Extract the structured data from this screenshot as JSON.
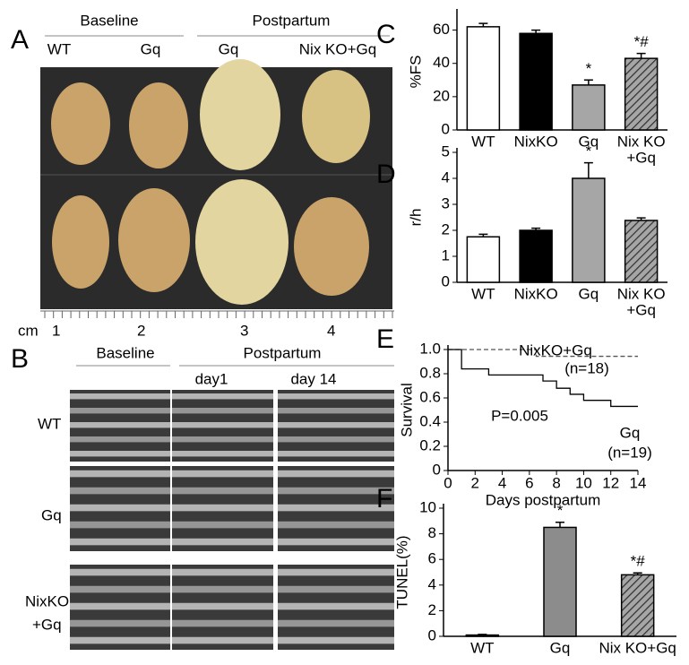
{
  "panels": {
    "A": {
      "letter": "A",
      "groups": [
        "Baseline",
        "Postpartum"
      ],
      "labels": [
        "WT",
        "Gq",
        "Gq",
        "Nix KO+Gq"
      ],
      "scale": {
        "unit": "cm",
        "marks": [
          "1",
          "2",
          "3",
          "4"
        ]
      }
    },
    "B": {
      "letter": "B",
      "groups": [
        "Baseline",
        "Postpartum"
      ],
      "days": [
        "day1",
        "day 14"
      ],
      "rows": [
        "WT",
        "Gq",
        [
          "NixKO",
          "+Gq"
        ]
      ]
    }
  },
  "chart_data": [
    {
      "type": "bar",
      "letter": "C",
      "ylabel": "%FS",
      "categories": [
        "WT",
        "NixKO",
        "Gq",
        [
          "Nix KO",
          "+Gq"
        ]
      ],
      "values": [
        62,
        58,
        27,
        43
      ],
      "errors": [
        2,
        2,
        3,
        3
      ],
      "colors": [
        "#ffffff",
        "#000000",
        "#a6a6a6",
        "#a6a6a6"
      ],
      "hatch": [
        false,
        false,
        false,
        true
      ],
      "annotations": [
        null,
        null,
        "*",
        "*#"
      ],
      "ylim": [
        0,
        70
      ],
      "yticks": [
        0,
        20,
        40,
        60
      ]
    },
    {
      "type": "bar",
      "letter": "D",
      "ylabel": "r/h",
      "categories": [
        "WT",
        "NixKO",
        "Gq",
        [
          "Nix KO",
          "+Gq"
        ]
      ],
      "values": [
        1.75,
        2.0,
        4.0,
        2.38
      ],
      "errors": [
        0.1,
        0.08,
        0.6,
        0.1
      ],
      "colors": [
        "#ffffff",
        "#000000",
        "#a6a6a6",
        "#a6a6a6"
      ],
      "hatch": [
        false,
        false,
        false,
        true
      ],
      "annotations": [
        null,
        null,
        "*",
        null
      ],
      "ylim": [
        0,
        5
      ],
      "yticks": [
        0,
        1,
        2,
        3,
        4,
        5
      ]
    },
    {
      "type": "line",
      "letter": "E",
      "xlabel": "Days postpartum",
      "ylabel": "Survival",
      "xlim": [
        0,
        14
      ],
      "xticks": [
        0,
        2,
        4,
        6,
        8,
        10,
        12,
        14
      ],
      "ylim": [
        0,
        1
      ],
      "yticks": [
        0,
        0.2,
        0.4,
        0.6,
        0.8,
        {
          "value": 1,
          "label": "1.0"
        }
      ],
      "series": [
        {
          "name": "NixKO+Gq",
          "n": "(n=18)",
          "color": "#555555",
          "dashed": true,
          "x": [
            0,
            6.5,
            6.5,
            14
          ],
          "values": [
            1,
            1,
            0.944,
            0.944
          ]
        },
        {
          "name": "Gq",
          "n": "(n=19)",
          "color": "#000000",
          "dashed": false,
          "x": [
            0,
            1,
            1,
            3,
            3,
            7,
            7,
            8,
            8,
            9,
            9,
            10,
            10,
            12,
            12,
            14
          ],
          "values": [
            1,
            1,
            0.84,
            0.84,
            0.79,
            0.79,
            0.74,
            0.74,
            0.68,
            0.68,
            0.63,
            0.63,
            0.58,
            0.58,
            0.53,
            0.53
          ]
        }
      ],
      "annotation": "P=0.005"
    },
    {
      "type": "bar",
      "letter": "F",
      "ylabel": "TUNEL(%)",
      "categories": [
        "WT",
        "Gq",
        "Nix KO+Gq"
      ],
      "values": [
        0.1,
        8.5,
        4.8
      ],
      "errors": [
        0.05,
        0.4,
        0.15
      ],
      "colors": [
        "#ffffff",
        "#8c8c8c",
        "#8c8c8c"
      ],
      "hatch": [
        false,
        false,
        true
      ],
      "annotations": [
        null,
        "*",
        "*#"
      ],
      "ylim": [
        0,
        10
      ],
      "yticks": [
        0,
        2,
        4,
        6,
        8,
        10
      ]
    }
  ]
}
